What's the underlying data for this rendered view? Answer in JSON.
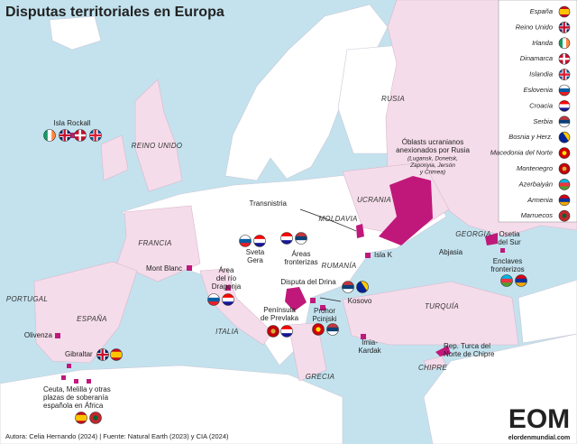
{
  "title": "Disputas territoriales en Europa",
  "legend": [
    "España",
    "Reino Unido",
    "Irlanda",
    "Dinamarca",
    "Islandia",
    "Eslovenia",
    "Croacia",
    "Serbia",
    "Bosnia y Herz.",
    "Macedonia del Norte",
    "Montenegro",
    "Azerbaiyán",
    "Armenia",
    "Marruecos"
  ],
  "countries": [
    "RUSIA",
    "REINO UNIDO",
    "FRANCIA",
    "PORTUGAL",
    "ESPAÑA",
    "ITALIA",
    "MOLDAVIA",
    "UCRANIA",
    "RUMANÍA",
    "GEORGIA",
    "TURQUÍA",
    "GRECIA",
    "CHIPRE"
  ],
  "disputes": [
    {
      "label": [
        "Isla Rockall"
      ]
    },
    {
      "label": [
        "Óblasts ucranianos",
        "anexionados por Rusia"
      ],
      "note": [
        "(Lugansk, Donetsk,",
        "Zaporiyia, Jersón",
        "y Crimea)"
      ]
    },
    {
      "label": [
        "Transnistria"
      ]
    },
    {
      "label": [
        "Sveta",
        "Gera"
      ]
    },
    {
      "label": [
        "Áreas",
        "fronterizas"
      ]
    },
    {
      "label": [
        "Isla K"
      ]
    },
    {
      "label": [
        "Osetia",
        "del Sur"
      ]
    },
    {
      "label": [
        "Abjasia"
      ]
    },
    {
      "label": [
        "Enclaves",
        "fronterizos"
      ]
    },
    {
      "label": [
        "Mont Blanc"
      ]
    },
    {
      "label": [
        "Área",
        "del río",
        "Dragonja"
      ]
    },
    {
      "label": [
        "Disputa del Drina"
      ]
    },
    {
      "label": [
        "Kosovo"
      ]
    },
    {
      "label": [
        "Península",
        "de Prevlaka"
      ]
    },
    {
      "label": [
        "Prohor",
        "Pcinjski"
      ]
    },
    {
      "label": [
        "Olivenza"
      ]
    },
    {
      "label": [
        "Gibraltar"
      ]
    },
    {
      "label": [
        "Imia-",
        "Kardak"
      ]
    },
    {
      "label": [
        "Rep. Turca del",
        "Norte de Chipre"
      ]
    },
    {
      "label": [
        "Ceuta, Melilla y otras",
        "plazas de soberanía",
        "española en África"
      ]
    }
  ],
  "footer": "Autora: Celia Hernando (2024) | Fuente: Natural Earth (2023) y CIA (2024)",
  "logo": {
    "name": "EOM",
    "site": "elordenmundial.com"
  }
}
